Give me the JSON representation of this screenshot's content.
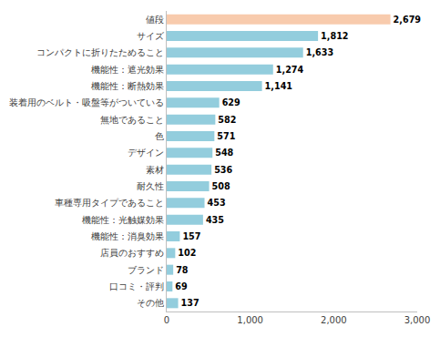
{
  "chart_data": {
    "type": "bar",
    "orientation": "horizontal",
    "categories": [
      "値段",
      "サイズ",
      "コンパクトに折りたためること",
      "機能性：遮光効果",
      "機能性：断熱効果",
      "装着用のベルト・吸盤等がついている",
      "無地であること",
      "色",
      "デザイン",
      "素材",
      "耐久性",
      "車種専用タイプであること",
      "機能性：光触媒効果",
      "機能性：消臭効果",
      "店員のおすすめ",
      "ブランド",
      "口コミ・評判",
      "その他"
    ],
    "values": [
      2679,
      1812,
      1633,
      1274,
      1141,
      629,
      582,
      571,
      548,
      536,
      508,
      453,
      435,
      157,
      102,
      78,
      69,
      137
    ],
    "value_labels": [
      "2,679",
      "1,812",
      "1,633",
      "1,274",
      "1,141",
      "629",
      "582",
      "571",
      "548",
      "536",
      "508",
      "453",
      "435",
      "157",
      "102",
      "78",
      "69",
      "137"
    ],
    "colors": [
      "#f8cbad",
      "#93cddd",
      "#93cddd",
      "#93cddd",
      "#93cddd",
      "#93cddd",
      "#93cddd",
      "#93cddd",
      "#93cddd",
      "#93cddd",
      "#93cddd",
      "#93cddd",
      "#93cddd",
      "#93cddd",
      "#93cddd",
      "#93cddd",
      "#93cddd",
      "#93cddd"
    ],
    "data_labels": true,
    "grid": false,
    "xlim": [
      0,
      3000
    ],
    "xticks": [
      0,
      {
        "value": 1000,
        "label": "1,000"
      },
      {
        "value": 2000,
        "label": "2,000"
      },
      {
        "value": 3000,
        "label": "3,000"
      }
    ]
  }
}
